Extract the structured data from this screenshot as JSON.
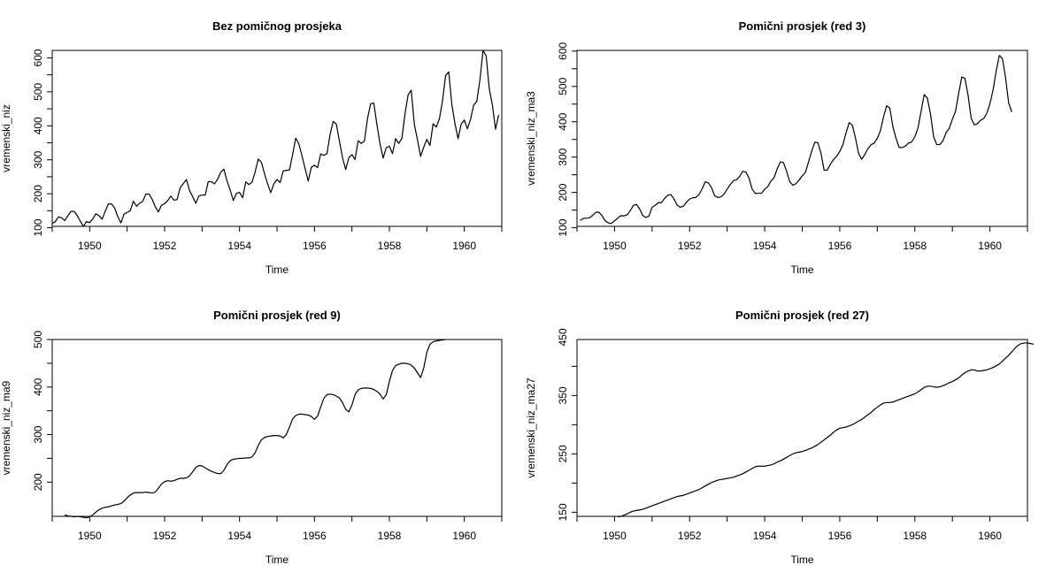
{
  "chart_data": [
    {
      "type": "line",
      "title": "Bez pomičnog prosjeka",
      "xlabel": "Time",
      "ylabel": "vremenski_niz",
      "xlim": [
        1949,
        1961
      ],
      "ylim": [
        104,
        622
      ],
      "xticks": [
        1950,
        1952,
        1954,
        1956,
        1958,
        1960
      ],
      "yticks": [
        100,
        200,
        300,
        400,
        500,
        600
      ],
      "grid": false,
      "x_start": 1949,
      "x_step": 0.0833333,
      "values": [
        112,
        118,
        132,
        129,
        121,
        135,
        148,
        148,
        136,
        119,
        104,
        118,
        115,
        126,
        141,
        135,
        125,
        149,
        170,
        170,
        158,
        133,
        114,
        140,
        145,
        150,
        178,
        163,
        172,
        178,
        199,
        199,
        184,
        162,
        146,
        166,
        171,
        180,
        193,
        181,
        183,
        218,
        230,
        242,
        209,
        191,
        172,
        194,
        196,
        196,
        236,
        235,
        229,
        243,
        264,
        272,
        237,
        211,
        180,
        201,
        204,
        188,
        235,
        227,
        234,
        264,
        302,
        293,
        259,
        229,
        203,
        229,
        242,
        233,
        267,
        269,
        270,
        315,
        364,
        347,
        312,
        274,
        237,
        278,
        284,
        277,
        317,
        313,
        318,
        374,
        413,
        405,
        355,
        306,
        271,
        306,
        315,
        301,
        356,
        348,
        355,
        422,
        465,
        467,
        404,
        347,
        305,
        336,
        340,
        318,
        362,
        348,
        363,
        435,
        491,
        505,
        404,
        359,
        310,
        337,
        360,
        342,
        406,
        396,
        420,
        472,
        548,
        559,
        463,
        407,
        362,
        405,
        417,
        391,
        419,
        461,
        472,
        535,
        622,
        606,
        508,
        461,
        390,
        432
      ]
    },
    {
      "type": "line",
      "title": "Pomični prosjek (red 3)",
      "xlabel": "Time",
      "ylabel": "vremenski_niz_ma3",
      "xlim": [
        1949,
        1961
      ],
      "ylim": [
        104,
        602
      ],
      "xticks": [
        1950,
        1952,
        1954,
        1956,
        1958,
        1960
      ],
      "yticks": [
        100,
        200,
        300,
        400,
        500,
        600
      ],
      "grid": false,
      "x_start": 1949.0833333,
      "x_step": 0.0833333,
      "values": [
        120.7,
        126.3,
        127.3,
        128.3,
        134.7,
        143.7,
        144.0,
        134.3,
        119.7,
        113.7,
        112.3,
        119.7,
        127.3,
        134.0,
        133.7,
        136.3,
        148.0,
        163.0,
        166.0,
        153.7,
        135.0,
        129.0,
        133.0,
        157.7,
        163.7,
        171.0,
        171.0,
        183.0,
        192.0,
        194.0,
        181.7,
        164.0,
        158.0,
        161.0,
        172.3,
        181.3,
        184.7,
        185.7,
        194.0,
        210.3,
        230.0,
        227.0,
        214.0,
        190.7,
        185.7,
        187.3,
        195.3,
        209.3,
        222.3,
        233.3,
        235.7,
        245.3,
        259.7,
        257.7,
        240.0,
        209.3,
        197.3,
        197.7,
        197.7,
        209.0,
        216.7,
        232.0,
        241.7,
        266.7,
        286.3,
        284.7,
        260.3,
        230.3,
        220.3,
        224.7,
        234.7,
        247.3,
        256.3,
        285.3,
        316.0,
        342.0,
        341.0,
        311.0,
        263.0,
        263.0,
        279.7,
        293.0,
        302.3,
        316.0,
        335.0,
        368.3,
        397.3,
        391.0,
        355.3,
        310.7,
        294.0,
        307.3,
        324.0,
        335.0,
        339.7,
        353.0,
        375.0,
        414.0,
        445.3,
        439.0,
        385.3,
        352.7,
        327.0,
        327.0,
        331.3,
        340.0,
        342.7,
        357.7,
        382.0,
        429.7,
        477.0,
        466.7,
        422.7,
        357.7,
        335.3,
        335.7,
        346.3,
        369.3,
        381.3,
        407.3,
        429.3,
        480.0,
        526.3,
        523.3,
        476.3,
        410.7,
        391.3,
        394.7,
        404.3,
        409.0,
        423.7,
        450.7,
        489.3,
        543.0,
        587.7,
        578.7,
        525.0,
        453.0,
        427.7
      ]
    },
    {
      "type": "line",
      "title": "Pomični prosjek (red 9)",
      "xlabel": "Time",
      "ylabel": "vremenski_niz_ma9",
      "xlim": [
        1949,
        1961
      ],
      "ylim": [
        128,
        500
      ],
      "xticks": [
        1950,
        1952,
        1954,
        1956,
        1958,
        1960
      ],
      "yticks": [
        200,
        300,
        400,
        500
      ],
      "grid": false,
      "x_start": 1949.3333333,
      "x_step": 0.0833333,
      "values": [
        131,
        129,
        128,
        127,
        128,
        127,
        126,
        125,
        127,
        131,
        137,
        142,
        145,
        147,
        148,
        150,
        152,
        153,
        155,
        160,
        167,
        173,
        177,
        178,
        178,
        178,
        179,
        178,
        177,
        179,
        187,
        196,
        201,
        203,
        202,
        203,
        206,
        208,
        208,
        209,
        213,
        222,
        231,
        235,
        234,
        230,
        226,
        223,
        220,
        218,
        218,
        225,
        237,
        245,
        248,
        249,
        250,
        250,
        251,
        251,
        253,
        262,
        277,
        289,
        294,
        296,
        297,
        298,
        298,
        297,
        293,
        300,
        316,
        333,
        340,
        343,
        343,
        342,
        341,
        338,
        332,
        339,
        358,
        376,
        384,
        385,
        384,
        381,
        377,
        367,
        353,
        348,
        362,
        384,
        394,
        397,
        398,
        398,
        397,
        395,
        391,
        385,
        375,
        384,
        412,
        435,
        445,
        448,
        450,
        450,
        449,
        446,
        440,
        430,
        420,
        440,
        473,
        490,
        495,
        497,
        498,
        499,
        500
      ]
    },
    {
      "type": "line",
      "title": "Pomični prosjek (red 27)",
      "xlabel": "Time",
      "ylabel": "vremenski_niz_ma27",
      "xlim": [
        1949,
        1961
      ],
      "ylim": [
        143,
        446
      ],
      "xticks": [
        1950,
        1952,
        1954,
        1956,
        1958,
        1960
      ],
      "yticks": [
        150,
        250,
        350,
        450
      ],
      "grid": false,
      "x_start": 1950.0833333,
      "x_step": 0.0833333,
      "values": [
        142,
        143,
        145,
        147,
        150,
        152,
        153,
        154,
        155,
        157,
        159,
        161,
        163,
        165,
        167,
        169,
        171,
        173,
        175,
        177,
        178,
        179,
        181,
        183,
        185,
        187,
        189,
        192,
        195,
        198,
        201,
        203,
        205,
        206,
        207,
        208,
        209,
        210,
        212,
        214,
        216,
        219,
        222,
        225,
        228,
        229,
        229,
        229,
        230,
        231,
        233,
        236,
        238,
        241,
        244,
        247,
        250,
        252,
        253,
        254,
        256,
        258,
        260,
        263,
        266,
        270,
        274,
        278,
        282,
        287,
        291,
        294,
        295,
        296,
        298,
        300,
        303,
        306,
        309,
        313,
        317,
        321,
        326,
        330,
        334,
        337,
        338,
        338,
        339,
        341,
        343,
        345,
        347,
        349,
        351,
        353,
        356,
        360,
        364,
        366,
        366,
        365,
        364,
        365,
        367,
        369,
        372,
        374,
        377,
        380,
        385,
        389,
        392,
        394,
        394,
        392,
        392,
        393,
        394,
        396,
        398,
        401,
        404,
        409,
        414,
        419,
        425,
        431,
        436,
        439,
        440,
        440,
        439,
        438
      ]
    }
  ]
}
